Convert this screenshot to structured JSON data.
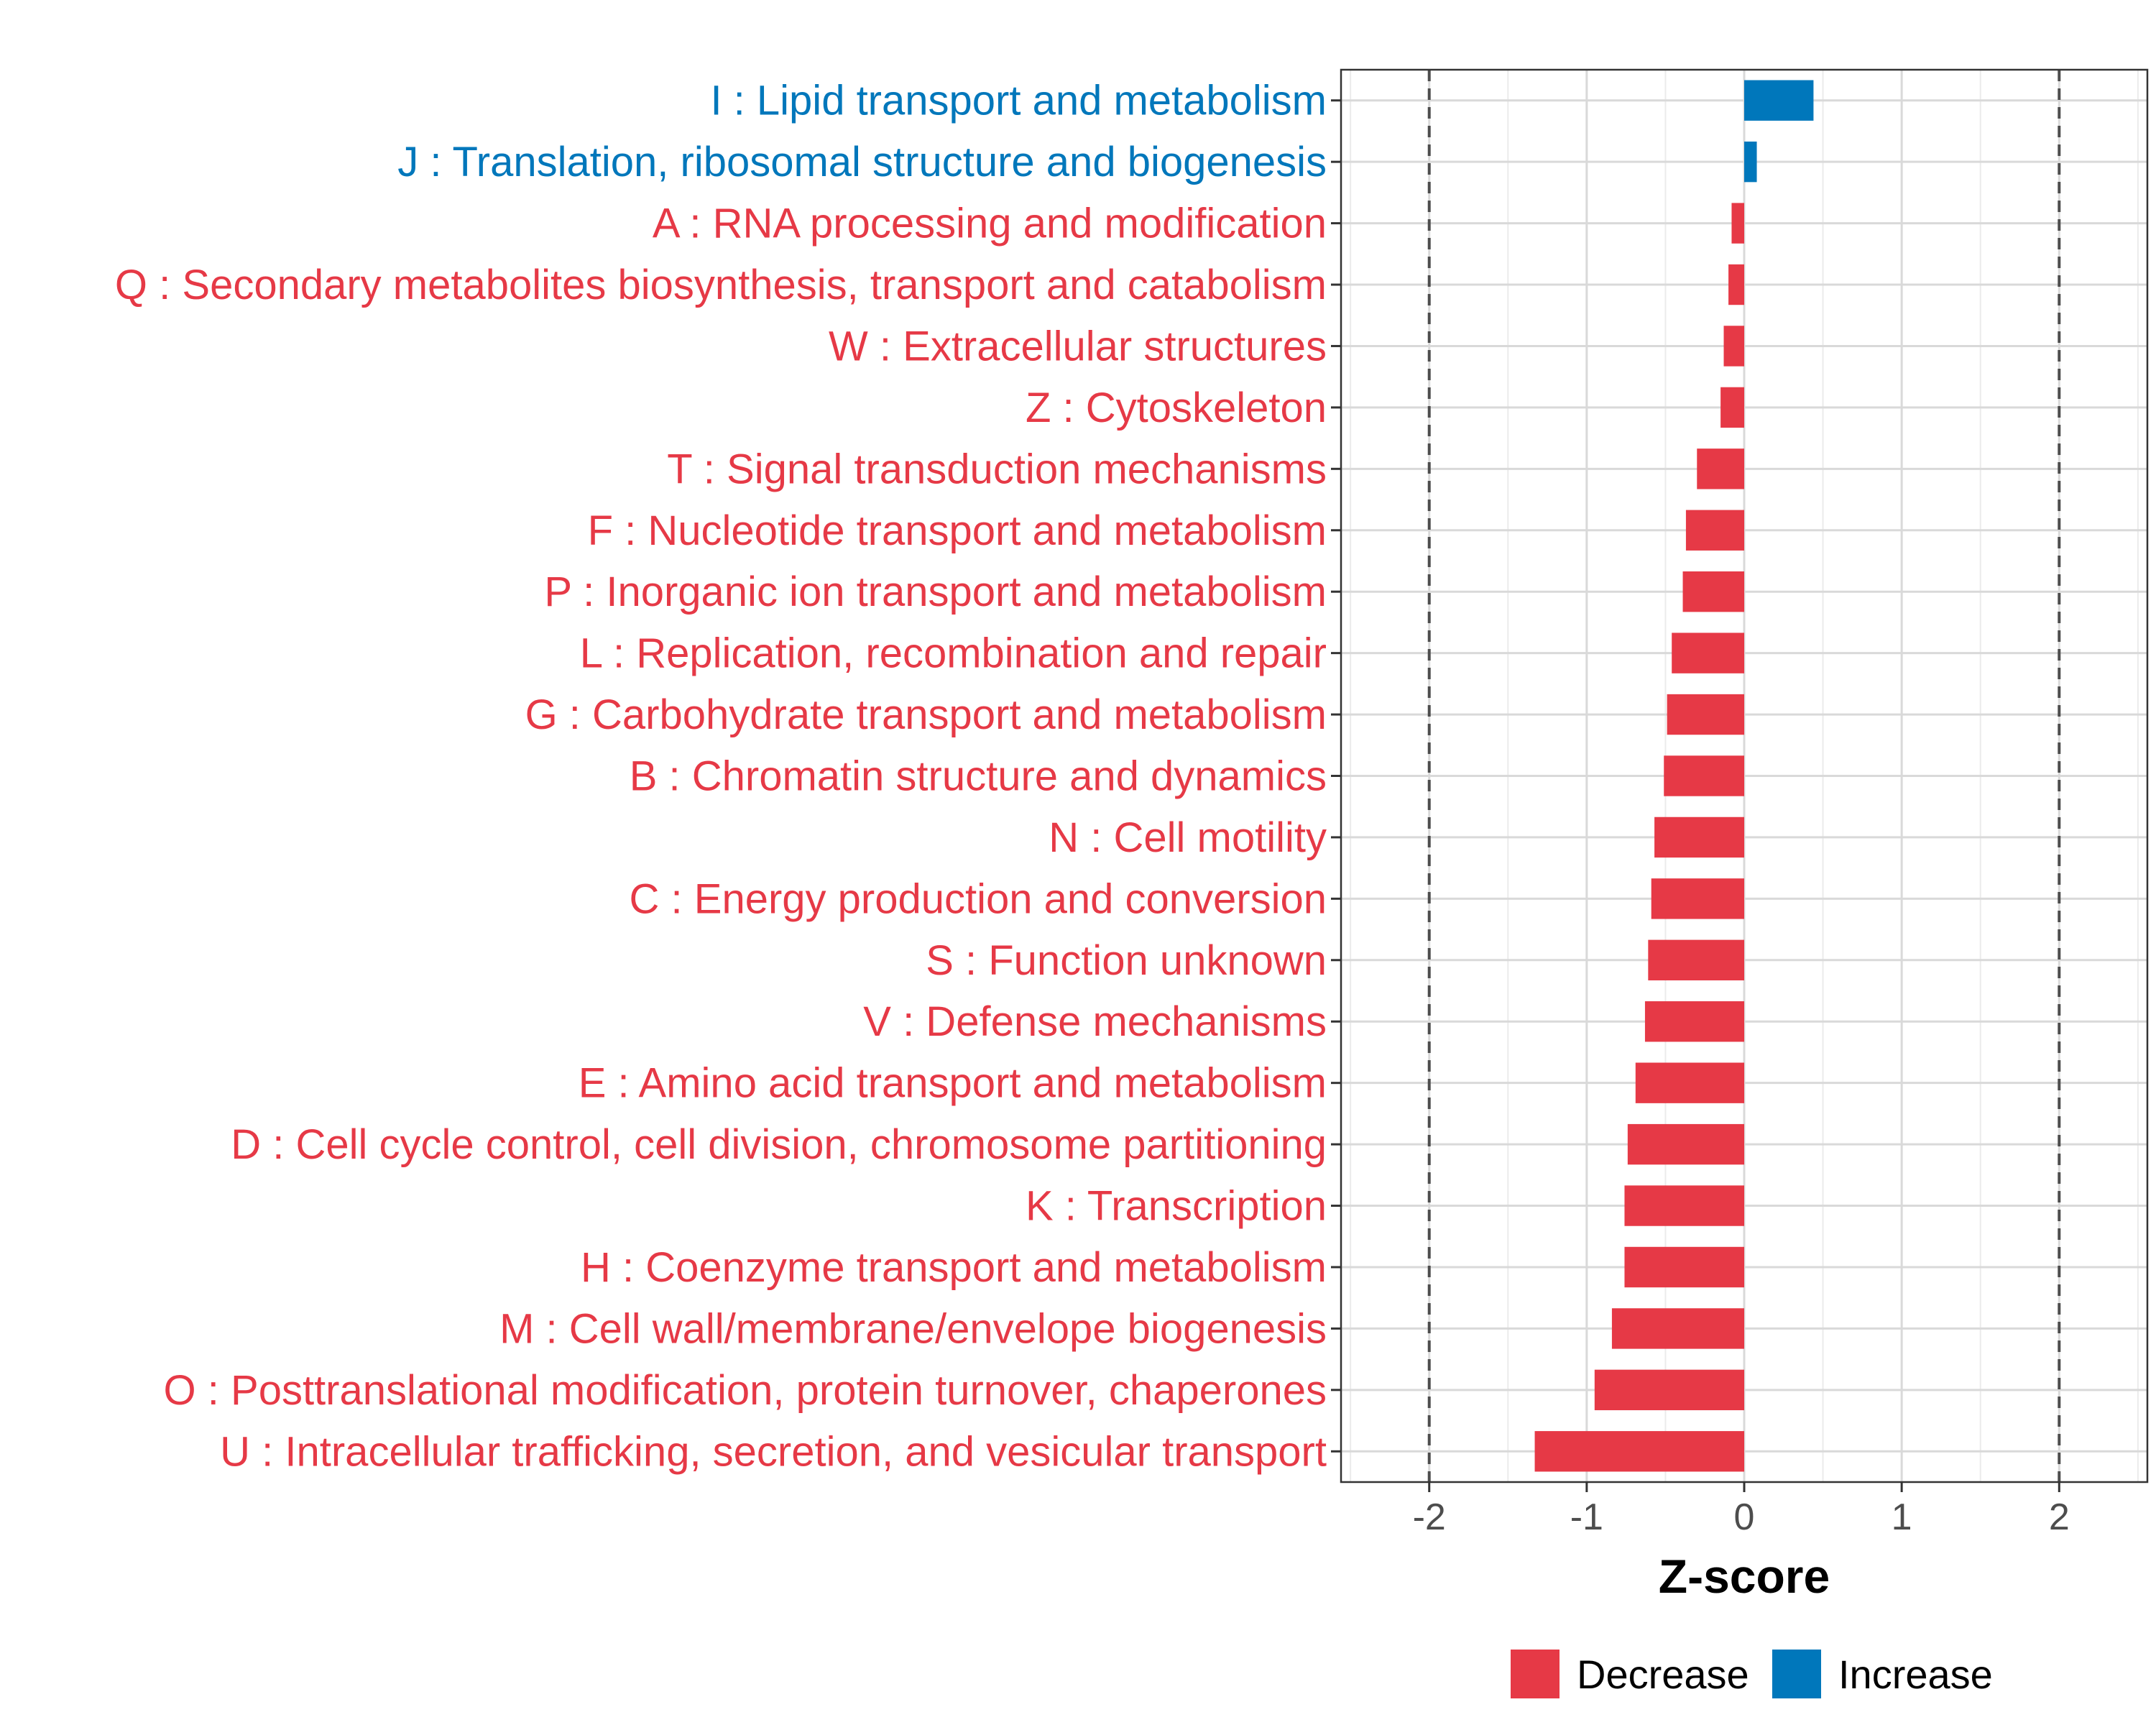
{
  "chart_data": {
    "type": "bar",
    "orientation": "horizontal",
    "categories": [
      "I : Lipid transport and metabolism",
      "J : Translation, ribosomal structure and biogenesis",
      "A : RNA processing and modification",
      "Q : Secondary metabolites biosynthesis, transport and catabolism",
      "W : Extracellular structures",
      "Z : Cytoskeleton",
      "T : Signal transduction mechanisms",
      "F : Nucleotide transport and metabolism",
      "P : Inorganic ion transport and metabolism",
      "L : Replication, recombination and repair",
      "G : Carbohydrate transport and metabolism",
      "B : Chromatin structure and dynamics",
      "N : Cell motility",
      "C : Energy production and conversion",
      "S : Function unknown",
      "V : Defense mechanisms",
      "E : Amino acid transport and metabolism",
      "D : Cell cycle control, cell division, chromosome partitioning",
      "K : Transcription",
      "H : Coenzyme transport and metabolism",
      "M : Cell wall/membrane/envelope biogenesis",
      "O : Posttranslational modification, protein turnover, chaperones",
      "U : Intracellular trafficking, secretion, and vesicular transport"
    ],
    "values": [
      0.44,
      0.08,
      -0.08,
      -0.1,
      -0.13,
      -0.15,
      -0.3,
      -0.37,
      -0.39,
      -0.46,
      -0.49,
      -0.51,
      -0.57,
      -0.59,
      -0.61,
      -0.63,
      -0.69,
      -0.74,
      -0.76,
      -0.76,
      -0.84,
      -0.95,
      -1.33
    ],
    "direction": [
      "Increase",
      "Increase",
      "Decrease",
      "Decrease",
      "Decrease",
      "Decrease",
      "Decrease",
      "Decrease",
      "Decrease",
      "Decrease",
      "Decrease",
      "Decrease",
      "Decrease",
      "Decrease",
      "Decrease",
      "Decrease",
      "Decrease",
      "Decrease",
      "Decrease",
      "Decrease",
      "Decrease",
      "Decrease",
      "Decrease"
    ],
    "xlabel": "Z-score",
    "xlim": [
      -2.56,
      2.56
    ],
    "xticks": [
      -2,
      -1,
      0,
      1,
      2
    ],
    "xtick_labels": [
      "-2",
      "-1",
      "0",
      "1",
      "2"
    ],
    "reference_lines": [
      -2,
      2
    ],
    "grid": true,
    "legend": {
      "placement": "bottom",
      "entries": [
        {
          "label": "Decrease",
          "color": "#E63946"
        },
        {
          "label": "Increase",
          "color": "#0077BB"
        }
      ]
    },
    "colors": {
      "Decrease": "#E63946",
      "Increase": "#0077BB"
    }
  }
}
